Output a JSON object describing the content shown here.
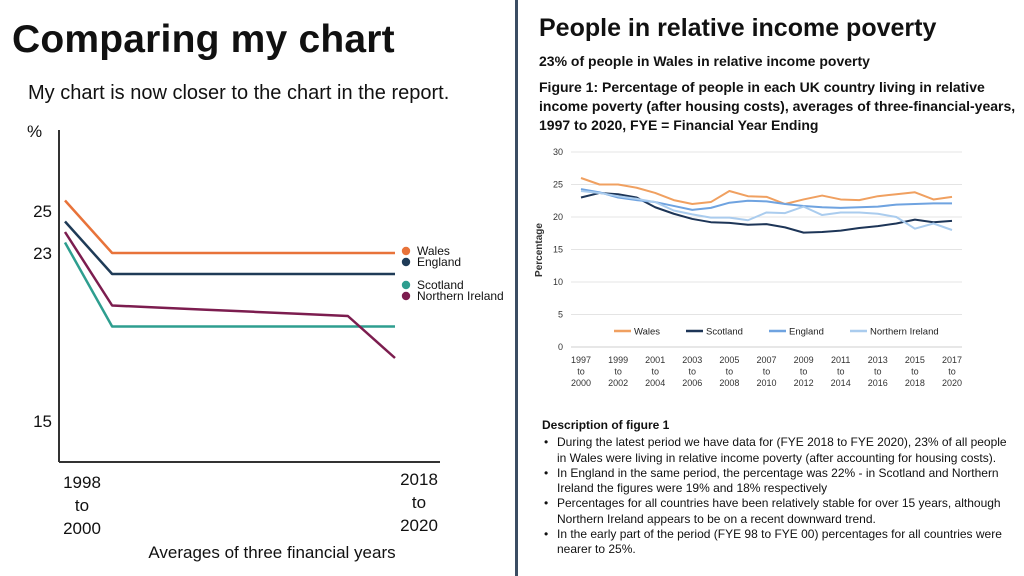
{
  "left": {
    "title": "Comparing my chart",
    "subtitle": "My chart is now closer to the chart in the report."
  },
  "right": {
    "title": "People in relative income poverty",
    "subtitle": "23% of people in Wales in relative income poverty",
    "figure_caption": "Figure 1: Percentage of people in each UK country living in relative income poverty (after housing costs), averages of three-financial-years, 1997 to 2020, FYE = Financial Year Ending",
    "description": {
      "title": "Description of figure 1",
      "bullets": [
        "During the latest period we have data for (FYE 2018 to FYE 2020), 23% of all people in Wales were living in relative income poverty (after accounting for housing costs).",
        "In England in the same period, the percentage was 22% - in Scotland and Northern Ireland the figures were 19% and 18% respectively",
        "Percentages for all countries have been relatively stable for over 15 years, although Northern Ireland appears to be on a recent downward trend.",
        "In the early part of the period (FYE 98 to FYE 00) percentages for all countries were nearer to 25%."
      ]
    }
  },
  "chart_data": [
    {
      "type": "line",
      "ylabel": "%",
      "xlabel": "Averages of three financial years",
      "categories": [
        "1998\nto\n2000",
        "",
        "",
        "",
        "",
        "",
        "",
        "2018\nto\n2020"
      ],
      "yticks": [
        15,
        23,
        25
      ],
      "ylim": [
        8,
        30
      ],
      "grid": false,
      "legend_position": "right",
      "series": [
        {
          "name": "Wales",
          "color": "#e8733a",
          "values": [
            25.5,
            23,
            23,
            23,
            23,
            23,
            23,
            23
          ]
        },
        {
          "name": "England",
          "color": "#1f3b57",
          "values": [
            24.5,
            22,
            22,
            22,
            22,
            22,
            22,
            22
          ]
        },
        {
          "name": "Scotland",
          "color": "#2e9e8f",
          "values": [
            23.5,
            19.5,
            19.5,
            19.5,
            19.5,
            19.5,
            19.5,
            19.5
          ]
        },
        {
          "name": "Northern Ireland",
          "color": "#7c1d4f",
          "values": [
            24,
            20.5,
            20.4,
            20.3,
            20.2,
            20.1,
            20,
            18
          ]
        }
      ]
    },
    {
      "type": "line",
      "ylabel": "Percentage",
      "xlabel": "",
      "ylim": [
        0,
        30
      ],
      "yticks": [
        0,
        5,
        10,
        15,
        20,
        25,
        30
      ],
      "categories": [
        "1997 to 2000",
        "",
        "1999 to 2002",
        "",
        "2001 to 2004",
        "",
        "2003 to 2006",
        "",
        "2005 to 2008",
        "",
        "2007 to 2010",
        "",
        "2009 to 2012",
        "",
        "2011 to 2014",
        "",
        "2013 to 2016",
        "",
        "2015 to 2018",
        "",
        "2017 to 2020"
      ],
      "grid": true,
      "legend_position": "bottom",
      "series": [
        {
          "name": "Wales",
          "color": "#f0a060",
          "values": [
            26,
            25,
            25,
            24.5,
            23.7,
            22.6,
            22,
            22.3,
            24,
            23.2,
            23.1,
            22,
            22.7,
            23.3,
            22.7,
            22.6,
            23.2,
            23.5,
            23.8,
            22.7,
            23.1
          ]
        },
        {
          "name": "Scotland",
          "color": "#1d3557",
          "values": [
            23,
            23.7,
            23.5,
            23,
            21.5,
            20.5,
            19.7,
            19.2,
            19.1,
            18.8,
            18.9,
            18.4,
            17.6,
            17.7,
            17.9,
            18.3,
            18.6,
            19,
            19.6,
            19.2,
            19.4
          ]
        },
        {
          "name": "England",
          "color": "#6fa3e0",
          "values": [
            24.3,
            23.8,
            23,
            22.6,
            22.3,
            21.7,
            21.1,
            21.4,
            22.2,
            22.5,
            22.4,
            22,
            21.7,
            21.5,
            21.4,
            21.5,
            21.6,
            21.9,
            22,
            22.1,
            22.1
          ]
        },
        {
          "name": "Northern Ireland",
          "color": "#aaccee",
          "values": [
            24,
            23.7,
            23.2,
            22.8,
            22.3,
            21,
            20.4,
            19.9,
            19.9,
            19.5,
            20.7,
            20.6,
            21.6,
            20.3,
            20.7,
            20.7,
            20.5,
            20,
            18.2,
            19,
            18
          ]
        }
      ]
    }
  ]
}
